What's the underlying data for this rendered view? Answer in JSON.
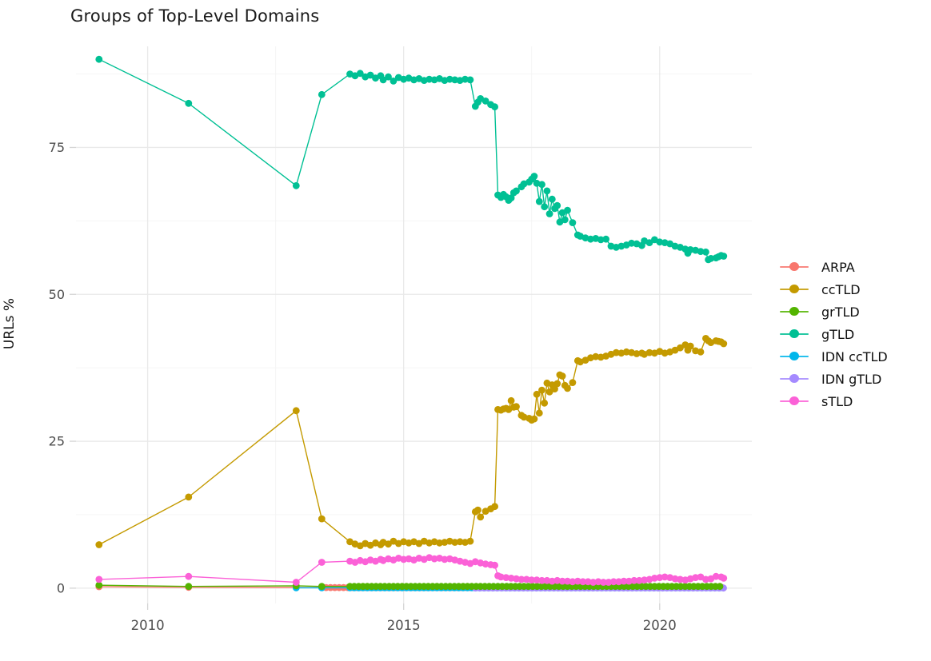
{
  "chart_data": {
    "type": "line",
    "title": "Groups of Top-Level Domains",
    "xlabel": "",
    "ylabel": "URLs %",
    "legend_position": "right",
    "grid": true,
    "x_domain": [
      2008.6,
      2021.8
    ],
    "y_domain": [
      -2.6,
      92.2
    ],
    "x_ticks": [
      {
        "value": 2010,
        "label": "2010"
      },
      {
        "value": 2015,
        "label": "2015"
      },
      {
        "value": 2020,
        "label": "2020"
      }
    ],
    "x_minor_ticks": [
      2012.5,
      2017.5
    ],
    "y_ticks": [
      {
        "value": 0,
        "label": "0"
      },
      {
        "value": 25,
        "label": "25"
      },
      {
        "value": 50,
        "label": "50"
      },
      {
        "value": 75,
        "label": "75"
      }
    ],
    "y_minor_ticks": [
      12.5,
      37.5,
      62.5,
      87.5
    ],
    "draw_order": [
      "ARPA",
      "IDN ccTLD",
      "IDN gTLD",
      "grTLD",
      "sTLD",
      "ccTLD",
      "gTLD"
    ],
    "series": [
      {
        "name": "ARPA",
        "color": "#F8766D",
        "points": [
          [
            2009.05,
            0.25
          ],
          [
            2010.8,
            0.15
          ],
          [
            2012.9,
            0.12
          ]
        ],
        "runs": [
          {
            "from": 2013.4,
            "to": 2021.25,
            "step": 0.085,
            "y": 0.1
          }
        ]
      },
      {
        "name": "ccTLD",
        "color": "#C49A00",
        "points": [
          [
            2009.05,
            7.4
          ],
          [
            2010.8,
            15.5
          ],
          [
            2012.9,
            30.2
          ],
          [
            2013.4,
            11.8
          ],
          [
            2013.95,
            7.9
          ],
          [
            2014.05,
            7.5
          ],
          [
            2014.15,
            7.2
          ],
          [
            2014.25,
            7.6
          ],
          [
            2014.35,
            7.3
          ],
          [
            2014.45,
            7.7
          ],
          [
            2014.55,
            7.4
          ],
          [
            2014.6,
            7.8
          ],
          [
            2014.7,
            7.5
          ],
          [
            2014.8,
            8.0
          ],
          [
            2014.9,
            7.6
          ],
          [
            2015.0,
            7.9
          ],
          [
            2015.1,
            7.7
          ],
          [
            2015.2,
            7.9
          ],
          [
            2015.3,
            7.6
          ],
          [
            2015.4,
            8.0
          ],
          [
            2015.5,
            7.7
          ],
          [
            2015.6,
            7.9
          ],
          [
            2015.7,
            7.7
          ],
          [
            2015.8,
            7.8
          ],
          [
            2015.9,
            8.0
          ],
          [
            2016.0,
            7.8
          ],
          [
            2016.1,
            7.9
          ],
          [
            2016.2,
            7.8
          ],
          [
            2016.3,
            8.0
          ],
          [
            2016.4,
            13.0
          ],
          [
            2016.45,
            13.3
          ],
          [
            2016.5,
            12.1
          ],
          [
            2016.6,
            13.1
          ],
          [
            2016.7,
            13.5
          ],
          [
            2016.78,
            13.9
          ],
          [
            2016.84,
            30.4
          ],
          [
            2016.9,
            30.3
          ],
          [
            2016.95,
            30.5
          ],
          [
            2017.0,
            30.6
          ],
          [
            2017.05,
            30.4
          ],
          [
            2017.1,
            31.9
          ],
          [
            2017.15,
            30.8
          ],
          [
            2017.2,
            30.9
          ],
          [
            2017.3,
            29.4
          ],
          [
            2017.35,
            29.1
          ],
          [
            2017.45,
            28.9
          ],
          [
            2017.5,
            28.6
          ],
          [
            2017.55,
            28.8
          ],
          [
            2017.6,
            33.0
          ],
          [
            2017.65,
            29.8
          ],
          [
            2017.7,
            33.7
          ],
          [
            2017.75,
            31.5
          ],
          [
            2017.8,
            34.9
          ],
          [
            2017.85,
            33.4
          ],
          [
            2017.9,
            34.6
          ],
          [
            2017.95,
            33.9
          ],
          [
            2018.0,
            34.8
          ],
          [
            2018.05,
            36.3
          ],
          [
            2018.1,
            36.1
          ],
          [
            2018.15,
            34.5
          ],
          [
            2018.2,
            34.0
          ],
          [
            2018.3,
            35.0
          ],
          [
            2018.4,
            38.7
          ],
          [
            2018.45,
            38.5
          ],
          [
            2018.55,
            38.8
          ],
          [
            2018.65,
            39.2
          ],
          [
            2018.75,
            39.4
          ],
          [
            2018.85,
            39.3
          ],
          [
            2018.95,
            39.5
          ],
          [
            2019.05,
            39.8
          ],
          [
            2019.15,
            40.1
          ],
          [
            2019.25,
            40.0
          ],
          [
            2019.35,
            40.2
          ],
          [
            2019.45,
            40.1
          ],
          [
            2019.55,
            39.9
          ],
          [
            2019.65,
            40.0
          ],
          [
            2019.7,
            39.8
          ],
          [
            2019.8,
            40.1
          ],
          [
            2019.9,
            40.0
          ],
          [
            2020.0,
            40.3
          ],
          [
            2020.1,
            40.0
          ],
          [
            2020.2,
            40.2
          ],
          [
            2020.3,
            40.5
          ],
          [
            2020.4,
            40.9
          ],
          [
            2020.5,
            41.4
          ],
          [
            2020.55,
            40.5
          ],
          [
            2020.6,
            41.2
          ],
          [
            2020.7,
            40.4
          ],
          [
            2020.8,
            40.2
          ],
          [
            2020.9,
            42.5
          ],
          [
            2020.95,
            42.1
          ],
          [
            2021.0,
            41.8
          ],
          [
            2021.1,
            42.1
          ],
          [
            2021.15,
            42.0
          ],
          [
            2021.2,
            41.9
          ],
          [
            2021.25,
            41.6
          ]
        ]
      },
      {
        "name": "grTLD",
        "color": "#53B400",
        "points": [
          [
            2009.05,
            0.5
          ],
          [
            2010.8,
            0.3
          ],
          [
            2012.9,
            0.4
          ],
          [
            2013.4,
            0.3
          ]
        ],
        "runs": [
          {
            "from": 2013.95,
            "to": 2021.25,
            "step": 0.085,
            "y": 0.3
          }
        ]
      },
      {
        "name": "gTLD",
        "color": "#00C094",
        "points": [
          [
            2009.05,
            90.0
          ],
          [
            2010.8,
            82.5
          ],
          [
            2012.9,
            68.5
          ],
          [
            2013.4,
            84.0
          ],
          [
            2013.95,
            87.5
          ],
          [
            2014.05,
            87.2
          ],
          [
            2014.15,
            87.6
          ],
          [
            2014.25,
            87.0
          ],
          [
            2014.35,
            87.3
          ],
          [
            2014.45,
            86.8
          ],
          [
            2014.55,
            87.2
          ],
          [
            2014.6,
            86.5
          ],
          [
            2014.7,
            87.0
          ],
          [
            2014.8,
            86.3
          ],
          [
            2014.9,
            86.9
          ],
          [
            2015.0,
            86.6
          ],
          [
            2015.1,
            86.8
          ],
          [
            2015.2,
            86.5
          ],
          [
            2015.3,
            86.7
          ],
          [
            2015.4,
            86.4
          ],
          [
            2015.5,
            86.6
          ],
          [
            2015.6,
            86.5
          ],
          [
            2015.7,
            86.7
          ],
          [
            2015.8,
            86.4
          ],
          [
            2015.9,
            86.6
          ],
          [
            2016.0,
            86.5
          ],
          [
            2016.1,
            86.4
          ],
          [
            2016.2,
            86.6
          ],
          [
            2016.3,
            86.5
          ],
          [
            2016.4,
            82.0
          ],
          [
            2016.45,
            82.7
          ],
          [
            2016.5,
            83.3
          ],
          [
            2016.6,
            82.9
          ],
          [
            2016.7,
            82.3
          ],
          [
            2016.78,
            81.9
          ],
          [
            2016.84,
            66.9
          ],
          [
            2016.9,
            66.5
          ],
          [
            2016.95,
            67.0
          ],
          [
            2017.0,
            66.6
          ],
          [
            2017.05,
            66.0
          ],
          [
            2017.1,
            66.4
          ],
          [
            2017.15,
            67.3
          ],
          [
            2017.2,
            67.6
          ],
          [
            2017.3,
            68.3
          ],
          [
            2017.35,
            68.8
          ],
          [
            2017.45,
            69.1
          ],
          [
            2017.5,
            69.6
          ],
          [
            2017.55,
            70.1
          ],
          [
            2017.6,
            68.9
          ],
          [
            2017.65,
            65.8
          ],
          [
            2017.7,
            68.7
          ],
          [
            2017.75,
            64.9
          ],
          [
            2017.8,
            67.6
          ],
          [
            2017.85,
            63.7
          ],
          [
            2017.9,
            66.2
          ],
          [
            2017.95,
            64.6
          ],
          [
            2018.0,
            65.1
          ],
          [
            2018.05,
            62.3
          ],
          [
            2018.1,
            63.9
          ],
          [
            2018.15,
            62.7
          ],
          [
            2018.2,
            64.3
          ],
          [
            2018.3,
            62.2
          ],
          [
            2018.4,
            60.1
          ],
          [
            2018.45,
            59.9
          ],
          [
            2018.55,
            59.6
          ],
          [
            2018.65,
            59.4
          ],
          [
            2018.75,
            59.5
          ],
          [
            2018.85,
            59.3
          ],
          [
            2018.95,
            59.4
          ],
          [
            2019.05,
            58.2
          ],
          [
            2019.15,
            58.0
          ],
          [
            2019.25,
            58.2
          ],
          [
            2019.35,
            58.4
          ],
          [
            2019.45,
            58.7
          ],
          [
            2019.55,
            58.6
          ],
          [
            2019.65,
            58.3
          ],
          [
            2019.7,
            59.1
          ],
          [
            2019.8,
            58.8
          ],
          [
            2019.9,
            59.3
          ],
          [
            2020.0,
            58.9
          ],
          [
            2020.1,
            58.8
          ],
          [
            2020.2,
            58.6
          ],
          [
            2020.3,
            58.2
          ],
          [
            2020.4,
            58.0
          ],
          [
            2020.5,
            57.7
          ],
          [
            2020.55,
            57.0
          ],
          [
            2020.6,
            57.6
          ],
          [
            2020.7,
            57.5
          ],
          [
            2020.8,
            57.3
          ],
          [
            2020.9,
            57.2
          ],
          [
            2020.95,
            55.9
          ],
          [
            2021.0,
            56.1
          ],
          [
            2021.1,
            56.2
          ],
          [
            2021.15,
            56.4
          ],
          [
            2021.2,
            56.6
          ],
          [
            2021.25,
            56.5
          ]
        ]
      },
      {
        "name": "IDN ccTLD",
        "color": "#00B6EB",
        "points": [
          [
            2012.9,
            0.06
          ],
          [
            2013.4,
            0.06
          ]
        ],
        "runs": [
          {
            "from": 2013.95,
            "to": 2021.25,
            "step": 0.085,
            "y": 0.07
          }
        ]
      },
      {
        "name": "IDN gTLD",
        "color": "#A58AFF",
        "points": [],
        "runs": [
          {
            "from": 2016.4,
            "to": 2021.25,
            "step": 0.085,
            "y": 0.03
          }
        ]
      },
      {
        "name": "sTLD",
        "color": "#FB61D7",
        "points": [
          [
            2009.05,
            1.5
          ],
          [
            2010.8,
            2.0
          ],
          [
            2012.9,
            1.0
          ],
          [
            2013.4,
            4.4
          ],
          [
            2013.95,
            4.6
          ],
          [
            2014.05,
            4.4
          ],
          [
            2014.15,
            4.7
          ],
          [
            2014.25,
            4.5
          ],
          [
            2014.35,
            4.8
          ],
          [
            2014.45,
            4.6
          ],
          [
            2014.55,
            4.9
          ],
          [
            2014.6,
            4.7
          ],
          [
            2014.7,
            5.0
          ],
          [
            2014.8,
            4.8
          ],
          [
            2014.9,
            5.1
          ],
          [
            2015.0,
            4.9
          ],
          [
            2015.1,
            5.0
          ],
          [
            2015.2,
            4.8
          ],
          [
            2015.3,
            5.1
          ],
          [
            2015.4,
            4.9
          ],
          [
            2015.5,
            5.2
          ],
          [
            2015.6,
            5.0
          ],
          [
            2015.7,
            5.1
          ],
          [
            2015.8,
            4.9
          ],
          [
            2015.9,
            5.0
          ],
          [
            2016.0,
            4.8
          ],
          [
            2016.1,
            4.6
          ],
          [
            2016.2,
            4.4
          ],
          [
            2016.3,
            4.2
          ],
          [
            2016.4,
            4.5
          ],
          [
            2016.5,
            4.3
          ],
          [
            2016.6,
            4.1
          ],
          [
            2016.7,
            4.0
          ],
          [
            2016.78,
            3.9
          ],
          [
            2016.84,
            2.1
          ],
          [
            2016.9,
            1.9
          ],
          [
            2017.0,
            1.8
          ],
          [
            2017.1,
            1.7
          ],
          [
            2017.2,
            1.6
          ],
          [
            2017.3,
            1.5
          ],
          [
            2017.4,
            1.5
          ],
          [
            2017.5,
            1.4
          ],
          [
            2017.6,
            1.4
          ],
          [
            2017.7,
            1.3
          ],
          [
            2017.8,
            1.3
          ],
          [
            2017.9,
            1.2
          ],
          [
            2018.0,
            1.3
          ],
          [
            2018.1,
            1.2
          ],
          [
            2018.2,
            1.2
          ],
          [
            2018.3,
            1.1
          ],
          [
            2018.4,
            1.2
          ],
          [
            2018.5,
            1.1
          ],
          [
            2018.6,
            1.1
          ],
          [
            2018.7,
            1.0
          ],
          [
            2018.8,
            1.1
          ],
          [
            2018.9,
            1.0
          ],
          [
            2019.0,
            1.0
          ],
          [
            2019.1,
            1.1
          ],
          [
            2019.2,
            1.1
          ],
          [
            2019.3,
            1.2
          ],
          [
            2019.4,
            1.2
          ],
          [
            2019.5,
            1.3
          ],
          [
            2019.6,
            1.3
          ],
          [
            2019.7,
            1.4
          ],
          [
            2019.8,
            1.5
          ],
          [
            2019.9,
            1.7
          ],
          [
            2020.0,
            1.8
          ],
          [
            2020.1,
            1.9
          ],
          [
            2020.2,
            1.8
          ],
          [
            2020.3,
            1.6
          ],
          [
            2020.4,
            1.5
          ],
          [
            2020.5,
            1.4
          ],
          [
            2020.6,
            1.6
          ],
          [
            2020.7,
            1.8
          ],
          [
            2020.8,
            1.9
          ],
          [
            2020.9,
            1.5
          ],
          [
            2021.0,
            1.6
          ],
          [
            2021.1,
            2.0
          ],
          [
            2021.2,
            1.9
          ],
          [
            2021.25,
            1.7
          ]
        ]
      }
    ],
    "style": {
      "grid_major": "#E9E9E9",
      "grid_minor": "#F4F4F4",
      "tick_mark": "#D4D4D4",
      "tick_text": "#4D4D4D",
      "point_radius": 4.4,
      "line_width": 1.4
    }
  }
}
